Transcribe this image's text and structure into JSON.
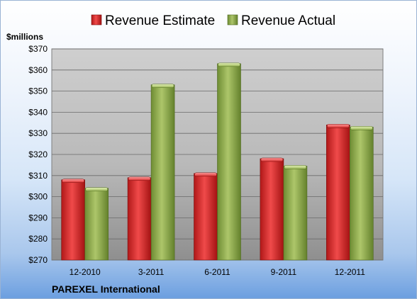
{
  "chart_data": {
    "type": "bar",
    "title": "",
    "ylabel": "$millions",
    "xlabel": "",
    "caption": "PAREXEL International",
    "categories": [
      "12-2010",
      "3-2011",
      "6-2011",
      "9-2011",
      "12-2011"
    ],
    "series": [
      {
        "name": "Revenue Estimate",
        "values": [
          308,
          309,
          311,
          318,
          334
        ],
        "color": "#d42a2a"
      },
      {
        "name": "Revenue Actual",
        "values": [
          304,
          353,
          363,
          314.5,
          333
        ],
        "color": "#8fad4a"
      }
    ],
    "ylim": [
      270,
      370
    ],
    "yticks": [
      270,
      280,
      290,
      300,
      310,
      320,
      330,
      340,
      350,
      360,
      370
    ],
    "ytick_labels": [
      "$270",
      "$280",
      "$290",
      "$300",
      "$310",
      "$320",
      "$330",
      "$340",
      "$350",
      "$360",
      "$370"
    ],
    "grid": true,
    "legend_position": "top"
  }
}
